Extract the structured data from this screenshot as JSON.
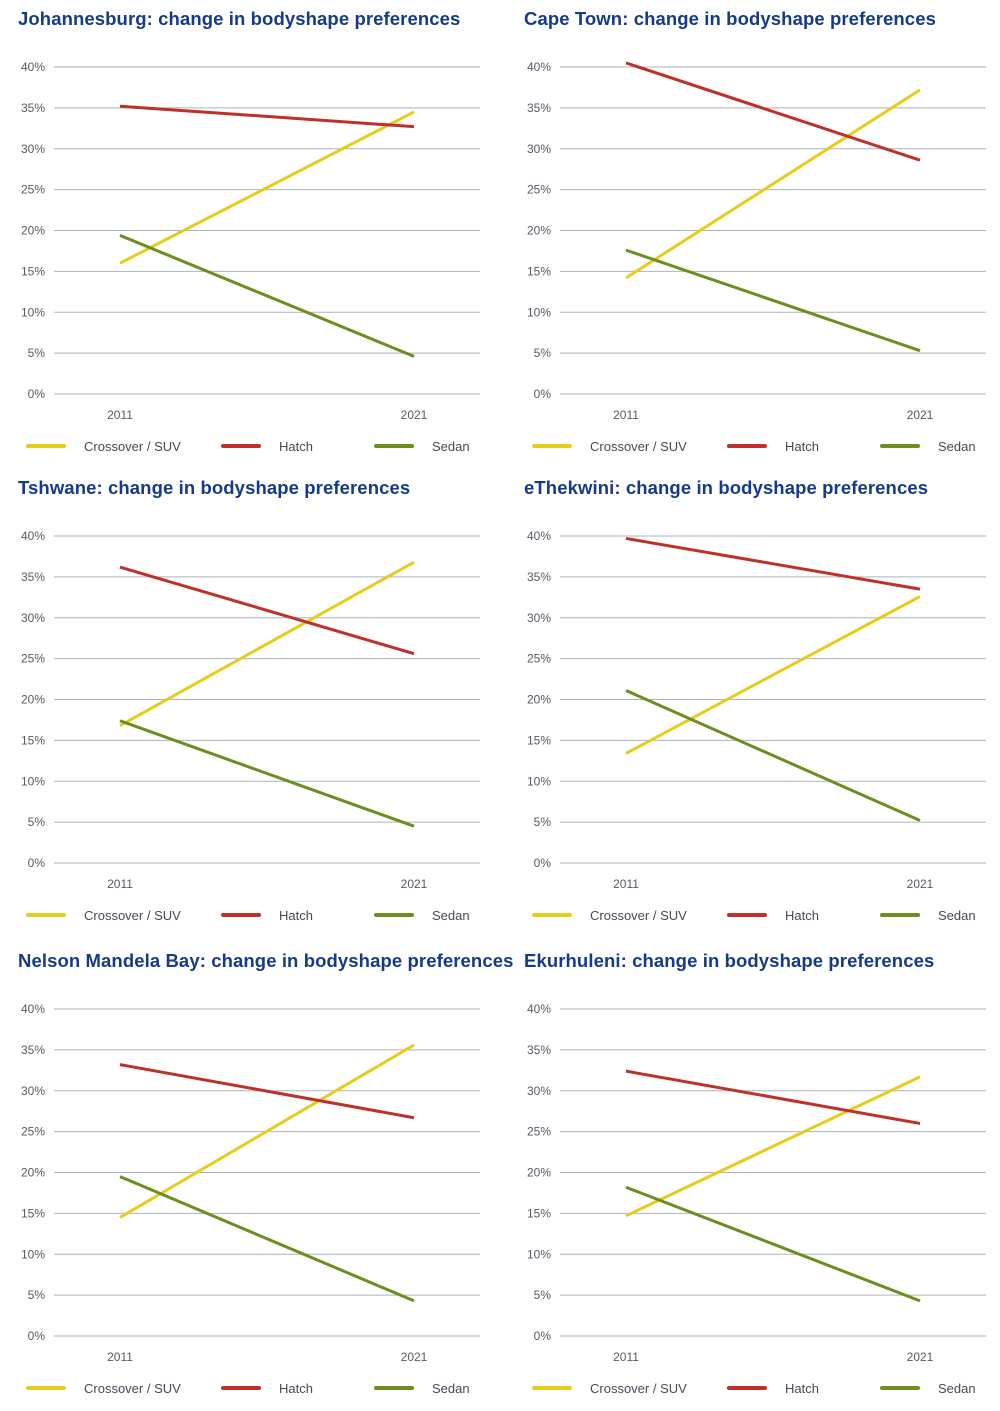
{
  "colors": {
    "title": "#163a8a",
    "grid": "#aab3bf",
    "crossover": "#e8cc1c",
    "hatch": "#c0302a",
    "sedan": "#6b8e1f"
  },
  "legend": {
    "crossover": "Crossover / SUV",
    "hatch": "Hatch",
    "sedan": "Sedan"
  },
  "chart_data": [
    {
      "type": "line",
      "title": "Johannesburg: change in bodyshape preferences",
      "x": [
        "2011",
        "2021"
      ],
      "yticks": [
        "0%",
        "5%",
        "10%",
        "15%",
        "20%",
        "25%",
        "30%",
        "35%",
        "40%"
      ],
      "ylim": [
        0,
        40
      ],
      "grid": true,
      "legend_position": "bottom",
      "series": [
        {
          "name": "Crossover / SUV",
          "key": "crossover",
          "values": [
            16.0,
            34.5
          ]
        },
        {
          "name": "Hatch",
          "key": "hatch",
          "values": [
            35.2,
            32.7
          ]
        },
        {
          "name": "Sedan",
          "key": "sedan",
          "values": [
            19.4,
            4.6
          ]
        }
      ]
    },
    {
      "type": "line",
      "title": "Cape Town: change in bodyshape preferences",
      "x": [
        "2011",
        "2021"
      ],
      "yticks": [
        "0%",
        "5%",
        "10%",
        "15%",
        "20%",
        "25%",
        "30%",
        "35%",
        "40%"
      ],
      "ylim": [
        0,
        40
      ],
      "grid": true,
      "legend_position": "bottom",
      "series": [
        {
          "name": "Crossover / SUV",
          "key": "crossover",
          "values": [
            14.2,
            37.2
          ]
        },
        {
          "name": "Hatch",
          "key": "hatch",
          "values": [
            40.5,
            28.6
          ]
        },
        {
          "name": "Sedan",
          "key": "sedan",
          "values": [
            17.6,
            5.3
          ]
        }
      ]
    },
    {
      "type": "line",
      "title": "Tshwane: change in bodyshape preferences",
      "x": [
        "2011",
        "2021"
      ],
      "yticks": [
        "0%",
        "5%",
        "10%",
        "15%",
        "20%",
        "25%",
        "30%",
        "35%",
        "40%"
      ],
      "ylim": [
        0,
        40
      ],
      "grid": true,
      "legend_position": "bottom",
      "series": [
        {
          "name": "Crossover / SUV",
          "key": "crossover",
          "values": [
            16.8,
            36.8
          ]
        },
        {
          "name": "Hatch",
          "key": "hatch",
          "values": [
            36.2,
            25.6
          ]
        },
        {
          "name": "Sedan",
          "key": "sedan",
          "values": [
            17.4,
            4.5
          ]
        }
      ]
    },
    {
      "type": "line",
      "title": "eThekwini: change in bodyshape preferences",
      "x": [
        "2011",
        "2021"
      ],
      "yticks": [
        "0%",
        "5%",
        "10%",
        "15%",
        "20%",
        "25%",
        "30%",
        "35%",
        "40%"
      ],
      "ylim": [
        0,
        40
      ],
      "grid": true,
      "legend_position": "bottom",
      "series": [
        {
          "name": "Crossover / SUV",
          "key": "crossover",
          "values": [
            13.4,
            32.6
          ]
        },
        {
          "name": "Hatch",
          "key": "hatch",
          "values": [
            39.7,
            33.5
          ]
        },
        {
          "name": "Sedan",
          "key": "sedan",
          "values": [
            21.1,
            5.2
          ]
        }
      ]
    },
    {
      "type": "line",
      "title": "Nelson Mandela Bay: change in bodyshape preferences",
      "x": [
        "2011",
        "2021"
      ],
      "yticks": [
        "0%",
        "5%",
        "10%",
        "15%",
        "20%",
        "25%",
        "30%",
        "35%",
        "40%"
      ],
      "ylim": [
        0,
        40
      ],
      "grid": true,
      "legend_position": "bottom",
      "series": [
        {
          "name": "Crossover / SUV",
          "key": "crossover",
          "values": [
            14.5,
            35.6
          ]
        },
        {
          "name": "Hatch",
          "key": "hatch",
          "values": [
            33.2,
            26.7
          ]
        },
        {
          "name": "Sedan",
          "key": "sedan",
          "values": [
            19.5,
            4.3
          ]
        }
      ]
    },
    {
      "type": "line",
      "title": "Ekurhuleni: change in bodyshape preferences",
      "x": [
        "2011",
        "2021"
      ],
      "yticks": [
        "0%",
        "5%",
        "10%",
        "15%",
        "20%",
        "25%",
        "30%",
        "35%",
        "40%"
      ],
      "ylim": [
        0,
        40
      ],
      "grid": true,
      "legend_position": "bottom",
      "series": [
        {
          "name": "Crossover / SUV",
          "key": "crossover",
          "values": [
            14.7,
            31.7
          ]
        },
        {
          "name": "Hatch",
          "key": "hatch",
          "values": [
            32.4,
            26.0
          ]
        },
        {
          "name": "Sedan",
          "key": "sedan",
          "values": [
            18.2,
            4.3
          ]
        }
      ]
    }
  ]
}
